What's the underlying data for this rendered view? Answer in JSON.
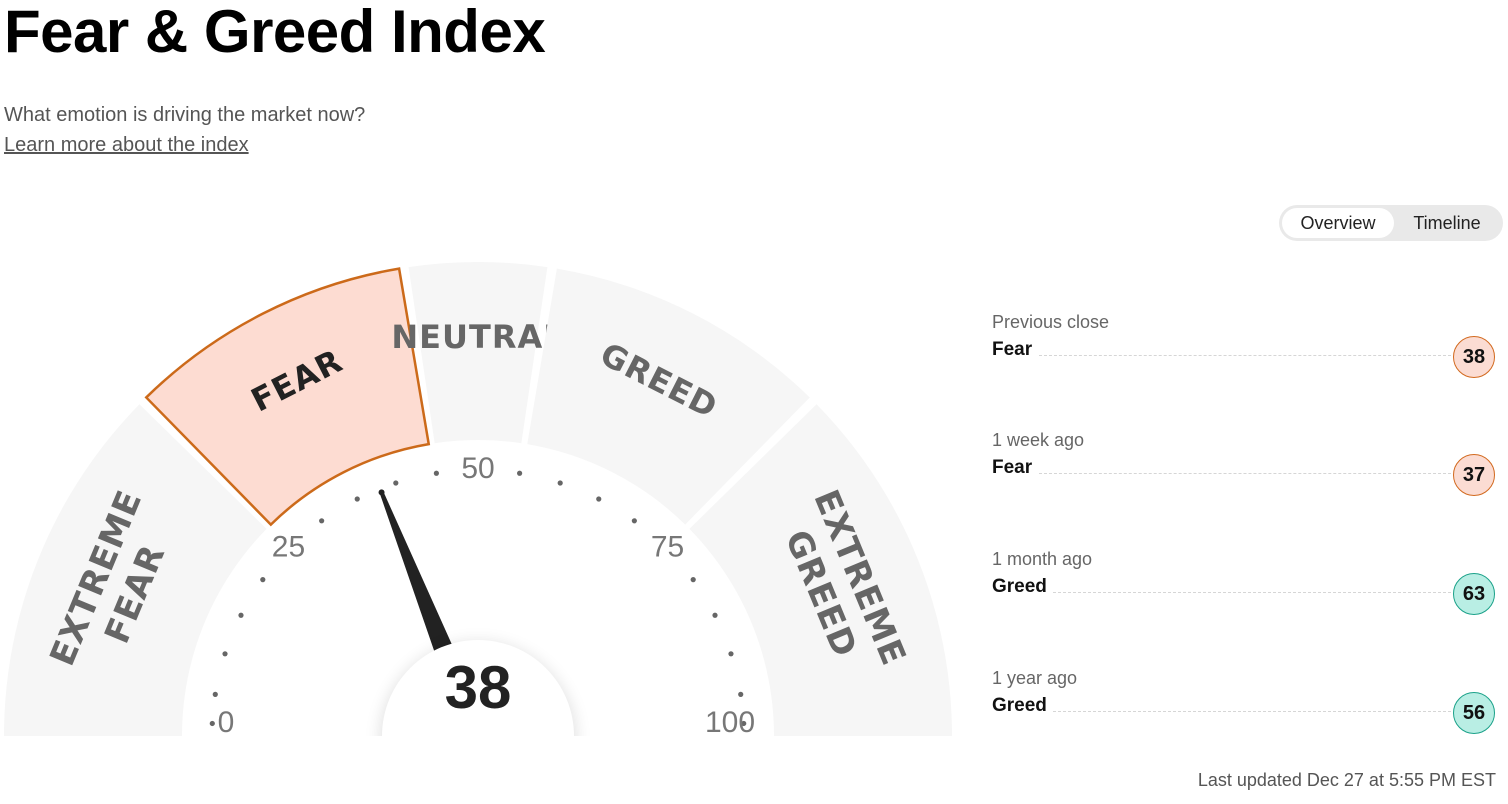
{
  "header": {
    "title": "Fear & Greed Index",
    "subtitle": "What emotion is driving the market now?",
    "learn_more": "Learn more about the index"
  },
  "view_toggle": {
    "options": [
      "Overview",
      "Timeline"
    ],
    "selected": "Overview"
  },
  "gauge": {
    "value": 38,
    "value_label": "38",
    "active_segment": "FEAR",
    "segments": [
      {
        "label": "EXTREME\nFEAR",
        "min": 0,
        "max": 25
      },
      {
        "label": "FEAR",
        "min": 25,
        "max": 45
      },
      {
        "label": "NEUTRAL",
        "min": 45,
        "max": 55
      },
      {
        "label": "GREED",
        "min": 55,
        "max": 75
      },
      {
        "label": "EXTREME\nGREED",
        "min": 75,
        "max": 100
      }
    ],
    "scale_labels": [
      "0",
      "25",
      "50",
      "75",
      "100"
    ],
    "colors": {
      "segment": "#f6f6f6",
      "active_fill": "#fddcd2",
      "active_stroke": "#cc6a1a",
      "text": "#666666",
      "active_text": "#222222",
      "needle": "#222222"
    }
  },
  "history": [
    {
      "label": "Previous close",
      "rating": "Fear",
      "value": "38",
      "sentiment": "fear"
    },
    {
      "label": "1 week ago",
      "rating": "Fear",
      "value": "37",
      "sentiment": "fear"
    },
    {
      "label": "1 month ago",
      "rating": "Greed",
      "value": "63",
      "sentiment": "greed"
    },
    {
      "label": "1 year ago",
      "rating": "Greed",
      "value": "56",
      "sentiment": "greed"
    }
  ],
  "last_updated": "Last updated Dec 27 at 5:55 PM EST"
}
